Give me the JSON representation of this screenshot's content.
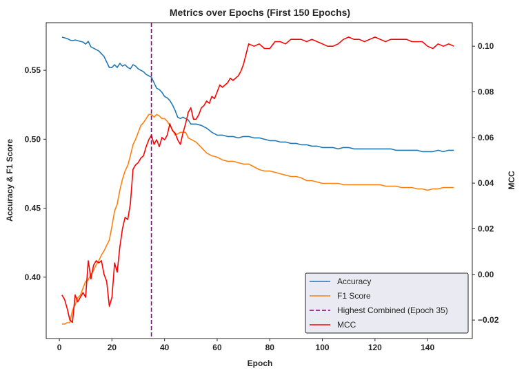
{
  "chart_data": {
    "type": "line",
    "title": "Metrics over Epochs (First 150 Epochs)",
    "xlabel": "Epoch",
    "ylabel_left": "Accuracy & F1 Score",
    "ylabel_right": "MCC",
    "xlim": [
      -5,
      157
    ],
    "ylim_left": [
      0.3555,
      0.5845
    ],
    "ylim_right": [
      -0.0281,
      0.1103
    ],
    "x_ticks": [
      0,
      20,
      40,
      60,
      80,
      100,
      120,
      140
    ],
    "y_left_ticks": [
      0.4,
      0.45,
      0.5,
      0.55
    ],
    "y_right_ticks": [
      -0.02,
      0.0,
      0.02,
      0.04,
      0.06,
      0.08,
      0.1
    ],
    "y_left_tick_labels": [
      "0.40",
      "0.45",
      "0.50",
      "0.55"
    ],
    "y_right_tick_labels": [
      "−0.02",
      "0.00",
      "0.02",
      "0.04",
      "0.06",
      "0.08",
      "0.10"
    ],
    "x_tick_labels": [
      "0",
      "20",
      "40",
      "60",
      "80",
      "100",
      "120",
      "140"
    ],
    "vline": {
      "x": 35,
      "label": "Highest Combined (Epoch 35)",
      "color": "#800080",
      "style": "dashed"
    },
    "series": [
      {
        "name": "Accuracy",
        "axis": "left",
        "color": "#1f77b4",
        "x": [
          1,
          2,
          3,
          4,
          5,
          6,
          7,
          8,
          9,
          10,
          11,
          12,
          13,
          14,
          15,
          16,
          17,
          18,
          19,
          20,
          21,
          22,
          23,
          24,
          25,
          26,
          27,
          28,
          29,
          30,
          31,
          32,
          33,
          34,
          35,
          36,
          37,
          38,
          39,
          40,
          41,
          42,
          43,
          44,
          45,
          46,
          47,
          48,
          49,
          50,
          52,
          54,
          56,
          58,
          60,
          62,
          64,
          66,
          68,
          70,
          72,
          74,
          76,
          78,
          80,
          82,
          84,
          86,
          88,
          90,
          92,
          94,
          96,
          98,
          100,
          102,
          104,
          106,
          108,
          110,
          112,
          114,
          116,
          118,
          120,
          122,
          124,
          126,
          128,
          130,
          132,
          134,
          136,
          138,
          140,
          142,
          144,
          146,
          148,
          150
        ],
        "y": [
          0.574,
          0.5735,
          0.573,
          0.572,
          0.5715,
          0.572,
          0.5715,
          0.571,
          0.5705,
          0.569,
          0.571,
          0.567,
          0.566,
          0.565,
          0.564,
          0.562,
          0.56,
          0.556,
          0.552,
          0.552,
          0.554,
          0.552,
          0.555,
          0.553,
          0.554,
          0.552,
          0.551,
          0.554,
          0.553,
          0.551,
          0.55,
          0.549,
          0.547,
          0.546,
          0.545,
          0.541,
          0.537,
          0.536,
          0.534,
          0.531,
          0.53,
          0.528,
          0.525,
          0.521,
          0.516,
          0.515,
          0.516,
          0.515,
          0.514,
          0.511,
          0.511,
          0.51,
          0.508,
          0.505,
          0.503,
          0.503,
          0.502,
          0.502,
          0.501,
          0.502,
          0.502,
          0.501,
          0.501,
          0.5,
          0.499,
          0.499,
          0.498,
          0.498,
          0.497,
          0.497,
          0.496,
          0.496,
          0.495,
          0.495,
          0.494,
          0.494,
          0.494,
          0.493,
          0.494,
          0.494,
          0.493,
          0.493,
          0.493,
          0.493,
          0.493,
          0.493,
          0.493,
          0.493,
          0.492,
          0.492,
          0.492,
          0.492,
          0.492,
          0.491,
          0.491,
          0.491,
          0.492,
          0.491,
          0.492,
          0.492
        ]
      },
      {
        "name": "F1 Score",
        "axis": "left",
        "color": "#ff7f0e",
        "x": [
          1,
          2,
          3,
          4,
          5,
          6,
          7,
          8,
          9,
          10,
          11,
          12,
          13,
          14,
          15,
          16,
          17,
          18,
          19,
          20,
          21,
          22,
          23,
          24,
          25,
          26,
          27,
          28,
          29,
          30,
          31,
          32,
          33,
          34,
          35,
          36,
          37,
          38,
          39,
          40,
          41,
          42,
          43,
          44,
          45,
          46,
          47,
          48,
          49,
          50,
          52,
          54,
          56,
          58,
          60,
          62,
          64,
          66,
          68,
          70,
          72,
          74,
          76,
          78,
          80,
          82,
          84,
          86,
          88,
          90,
          92,
          94,
          96,
          98,
          100,
          102,
          104,
          106,
          108,
          110,
          112,
          114,
          116,
          118,
          120,
          122,
          124,
          126,
          128,
          130,
          132,
          134,
          136,
          138,
          140,
          142,
          144,
          146,
          148,
          150
        ],
        "y": [
          0.366,
          0.366,
          0.367,
          0.367,
          0.376,
          0.38,
          0.385,
          0.387,
          0.392,
          0.397,
          0.398,
          0.402,
          0.405,
          0.409,
          0.412,
          0.416,
          0.419,
          0.423,
          0.427,
          0.437,
          0.448,
          0.453,
          0.463,
          0.471,
          0.477,
          0.481,
          0.488,
          0.496,
          0.5,
          0.505,
          0.51,
          0.512,
          0.515,
          0.518,
          0.518,
          0.516,
          0.518,
          0.517,
          0.515,
          0.515,
          0.513,
          0.51,
          0.507,
          0.503,
          0.504,
          0.505,
          0.505,
          0.505,
          0.501,
          0.5,
          0.498,
          0.494,
          0.49,
          0.488,
          0.487,
          0.485,
          0.484,
          0.484,
          0.483,
          0.482,
          0.482,
          0.48,
          0.478,
          0.477,
          0.477,
          0.476,
          0.475,
          0.474,
          0.473,
          0.473,
          0.472,
          0.47,
          0.47,
          0.469,
          0.468,
          0.468,
          0.468,
          0.468,
          0.467,
          0.467,
          0.467,
          0.467,
          0.467,
          0.467,
          0.467,
          0.467,
          0.466,
          0.466,
          0.466,
          0.465,
          0.465,
          0.465,
          0.464,
          0.464,
          0.463,
          0.464,
          0.464,
          0.465,
          0.465,
          0.465
        ]
      },
      {
        "name": "MCC",
        "axis": "right",
        "color": "#ff0000",
        "x": [
          1,
          2,
          3,
          4,
          5,
          6,
          7,
          8,
          9,
          10,
          11,
          12,
          13,
          14,
          15,
          16,
          17,
          18,
          19,
          20,
          21,
          22,
          23,
          24,
          25,
          26,
          27,
          28,
          29,
          30,
          31,
          32,
          33,
          34,
          35,
          36,
          37,
          38,
          39,
          40,
          41,
          42,
          43,
          44,
          45,
          46,
          47,
          48,
          49,
          50,
          51,
          52,
          53,
          54,
          55,
          56,
          57,
          58,
          59,
          60,
          61,
          62,
          63,
          64,
          65,
          66,
          67,
          68,
          69,
          70,
          72,
          74,
          76,
          78,
          80,
          82,
          84,
          86,
          88,
          90,
          92,
          94,
          96,
          98,
          100,
          102,
          104,
          106,
          108,
          110,
          112,
          114,
          116,
          118,
          120,
          122,
          124,
          126,
          128,
          130,
          132,
          134,
          136,
          138,
          140,
          142,
          144,
          146,
          148,
          150
        ],
        "y": [
          -0.009,
          -0.011,
          -0.015,
          -0.02,
          -0.021,
          -0.009,
          -0.012,
          -0.01,
          -0.008,
          -0.01,
          0.006,
          -0.002,
          0.004,
          0.006,
          0.005,
          0.006,
          0.0,
          -0.003,
          -0.014,
          -0.01,
          0.005,
          0.001,
          0.012,
          0.02,
          0.025,
          0.024,
          0.031,
          0.046,
          0.048,
          0.049,
          0.051,
          0.052,
          0.056,
          0.059,
          0.061,
          0.057,
          0.059,
          0.056,
          0.06,
          0.059,
          0.061,
          0.066,
          0.063,
          0.062,
          0.059,
          0.057,
          0.062,
          0.066,
          0.071,
          0.073,
          0.068,
          0.068,
          0.07,
          0.073,
          0.074,
          0.076,
          0.075,
          0.078,
          0.077,
          0.08,
          0.083,
          0.082,
          0.083,
          0.084,
          0.086,
          0.085,
          0.086,
          0.087,
          0.089,
          0.092,
          0.101,
          0.1,
          0.101,
          0.099,
          0.099,
          0.102,
          0.102,
          0.101,
          0.103,
          0.103,
          0.103,
          0.102,
          0.103,
          0.102,
          0.101,
          0.1,
          0.1,
          0.101,
          0.103,
          0.104,
          0.103,
          0.103,
          0.102,
          0.103,
          0.104,
          0.103,
          0.102,
          0.103,
          0.103,
          0.103,
          0.103,
          0.102,
          0.102,
          0.102,
          0.1,
          0.099,
          0.101,
          0.1,
          0.101,
          0.1
        ]
      }
    ],
    "legend": {
      "placement": "lower-right",
      "entries": [
        {
          "label": "Accuracy",
          "color": "#1f77b4",
          "style": "solid"
        },
        {
          "label": "F1 Score",
          "color": "#ff7f0e",
          "style": "solid"
        },
        {
          "label": "Highest Combined (Epoch 35)",
          "color": "#800080",
          "style": "dashed"
        },
        {
          "label": "MCC",
          "color": "#ff0000",
          "style": "solid"
        }
      ]
    },
    "grid": false
  }
}
